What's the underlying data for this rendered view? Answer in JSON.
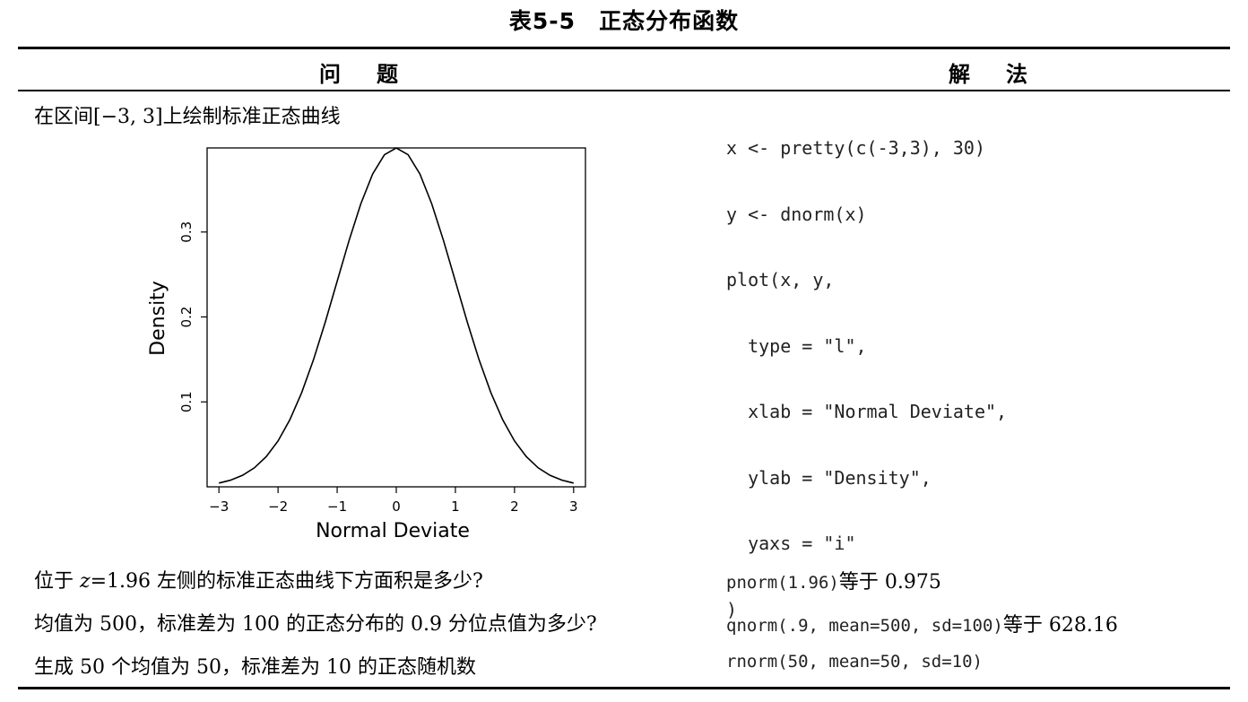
{
  "table": {
    "caption": "表5-5　正态分布函数",
    "header": {
      "question": "问题",
      "solution": "解法"
    },
    "rows": [
      {
        "question": "在区间[−3, 3]上绘制标准正态曲线",
        "code_lines": [
          "x <- pretty(c(-3,3), 30)",
          "y <- dnorm(x)",
          "plot(x, y,",
          "  type = \"l\",",
          "  xlab = \"Normal Deviate\",",
          "  ylab = \"Density\",",
          "  yaxs = \"i\"",
          ")"
        ]
      },
      {
        "question_pre": "位于 ",
        "question_var": "z",
        "question_post": "=1.96 左侧的标准正态曲线下方面积是多少?",
        "code": "pnorm(1.96)",
        "result": "等于 0.975"
      },
      {
        "question": "均值为 500，标准差为 100 的正态分布的 0.9 分位点值为多少?",
        "code": "qnorm(.9, mean=500, sd=100)",
        "result": "等于 628.16"
      },
      {
        "question": "生成 50 个均值为 50，标准差为 10 的正态随机数",
        "code": "rnorm(50, mean=50, sd=10)",
        "result": ""
      }
    ]
  },
  "chart_data": {
    "type": "line",
    "xlabel": "Normal Deviate",
    "ylabel": "Density",
    "xlim": [
      -3.2,
      3.2
    ],
    "ylim": [
      0.0,
      0.399
    ],
    "x_ticks": [
      -3,
      -2,
      -1,
      0,
      1,
      2,
      3
    ],
    "x_tick_labels": [
      "−3",
      "−2",
      "−1",
      "0",
      "1",
      "2",
      "3"
    ],
    "y_ticks": [
      0.1,
      0.2,
      0.3
    ],
    "y_tick_labels": [
      "0.1",
      "0.2",
      "0.3"
    ],
    "x": [
      -3.0,
      -2.8,
      -2.6,
      -2.4,
      -2.2,
      -2.0,
      -1.8,
      -1.6,
      -1.4,
      -1.2,
      -1.0,
      -0.8,
      -0.6,
      -0.4,
      -0.2,
      0.0,
      0.2,
      0.4,
      0.6,
      0.8,
      1.0,
      1.2,
      1.4,
      1.6,
      1.8,
      2.0,
      2.2,
      2.4,
      2.6,
      2.8,
      3.0
    ],
    "y": [
      0.0044,
      0.0079,
      0.0136,
      0.0224,
      0.0355,
      0.054,
      0.079,
      0.1109,
      0.1497,
      0.1942,
      0.242,
      0.2897,
      0.3332,
      0.3683,
      0.391,
      0.3989,
      0.391,
      0.3683,
      0.3332,
      0.2897,
      0.242,
      0.1942,
      0.1497,
      0.1109,
      0.079,
      0.054,
      0.0355,
      0.0224,
      0.0136,
      0.0079,
      0.0044
    ],
    "grid": false,
    "legend": "none"
  }
}
